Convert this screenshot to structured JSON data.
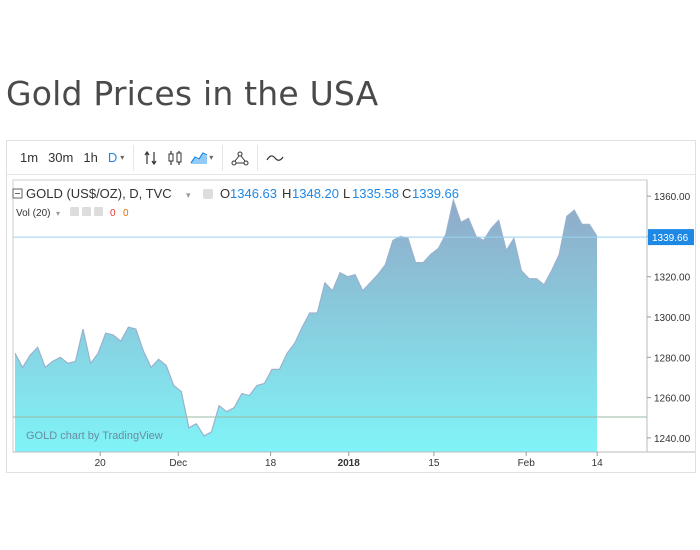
{
  "page": {
    "title": "Gold Prices in the USA"
  },
  "toolbar": {
    "intervals": [
      {
        "label": "1m",
        "active": false
      },
      {
        "label": "30m",
        "active": false
      },
      {
        "label": "1h",
        "active": false
      },
      {
        "label": "D",
        "active": true
      }
    ],
    "icons": [
      "compare-icon",
      "candles-icon",
      "area-chart-icon",
      "indicators-icon",
      "wave-icon"
    ]
  },
  "legend": {
    "symbol": "GOLD (US$/OZ), D, TVC",
    "open_label": "O",
    "open": "1346.63",
    "high_label": "H",
    "high": "1348.20",
    "low_label": "L",
    "low": "1335.58",
    "close_label": "C",
    "close": "1339.66",
    "volume_label": "Vol (20)",
    "volume_values": [
      "0",
      "0"
    ]
  },
  "watermark": "GOLD chart by TradingView",
  "colors": {
    "accent": "#1e88e5",
    "area_top": "#8aa6c6",
    "area_bottom": "#80f4f8",
    "line": "#9ab2cc",
    "last_price_bg": "#1e88e5",
    "volume_red": "#e53935",
    "volume_orange": "#ef6c00"
  },
  "chart_data": {
    "type": "area",
    "x_tick_labels": [
      "20",
      "Dec",
      "18",
      "2018",
      "15",
      "Feb",
      "14"
    ],
    "y_tick_labels": [
      "1240.00",
      "1260.00",
      "1280.00",
      "1300.00",
      "1320.00",
      "1340.00",
      "1360.00"
    ],
    "ylim": [
      1233,
      1368
    ],
    "last_price": 1339.66,
    "last_price_label": "1339.66",
    "values": [
      1282,
      1275,
      1281,
      1285,
      1275,
      1278,
      1280,
      1277,
      1278,
      1294,
      1277,
      1282,
      1292,
      1291,
      1288,
      1295,
      1294,
      1283,
      1275,
      1279,
      1276,
      1266,
      1263,
      1245,
      1247,
      1241,
      1243,
      1256,
      1253,
      1255,
      1262,
      1261,
      1266,
      1267,
      1274,
      1274,
      1282,
      1287,
      1295,
      1302,
      1302,
      1317,
      1313,
      1322,
      1320,
      1321,
      1313,
      1317,
      1321,
      1326,
      1338,
      1340,
      1339,
      1327,
      1327,
      1331,
      1334,
      1341,
      1358,
      1347,
      1349,
      1340,
      1338,
      1344,
      1348,
      1333,
      1339,
      1323,
      1319,
      1319,
      1316,
      1323,
      1331,
      1350,
      1353,
      1346,
      1346,
      1340
    ]
  }
}
